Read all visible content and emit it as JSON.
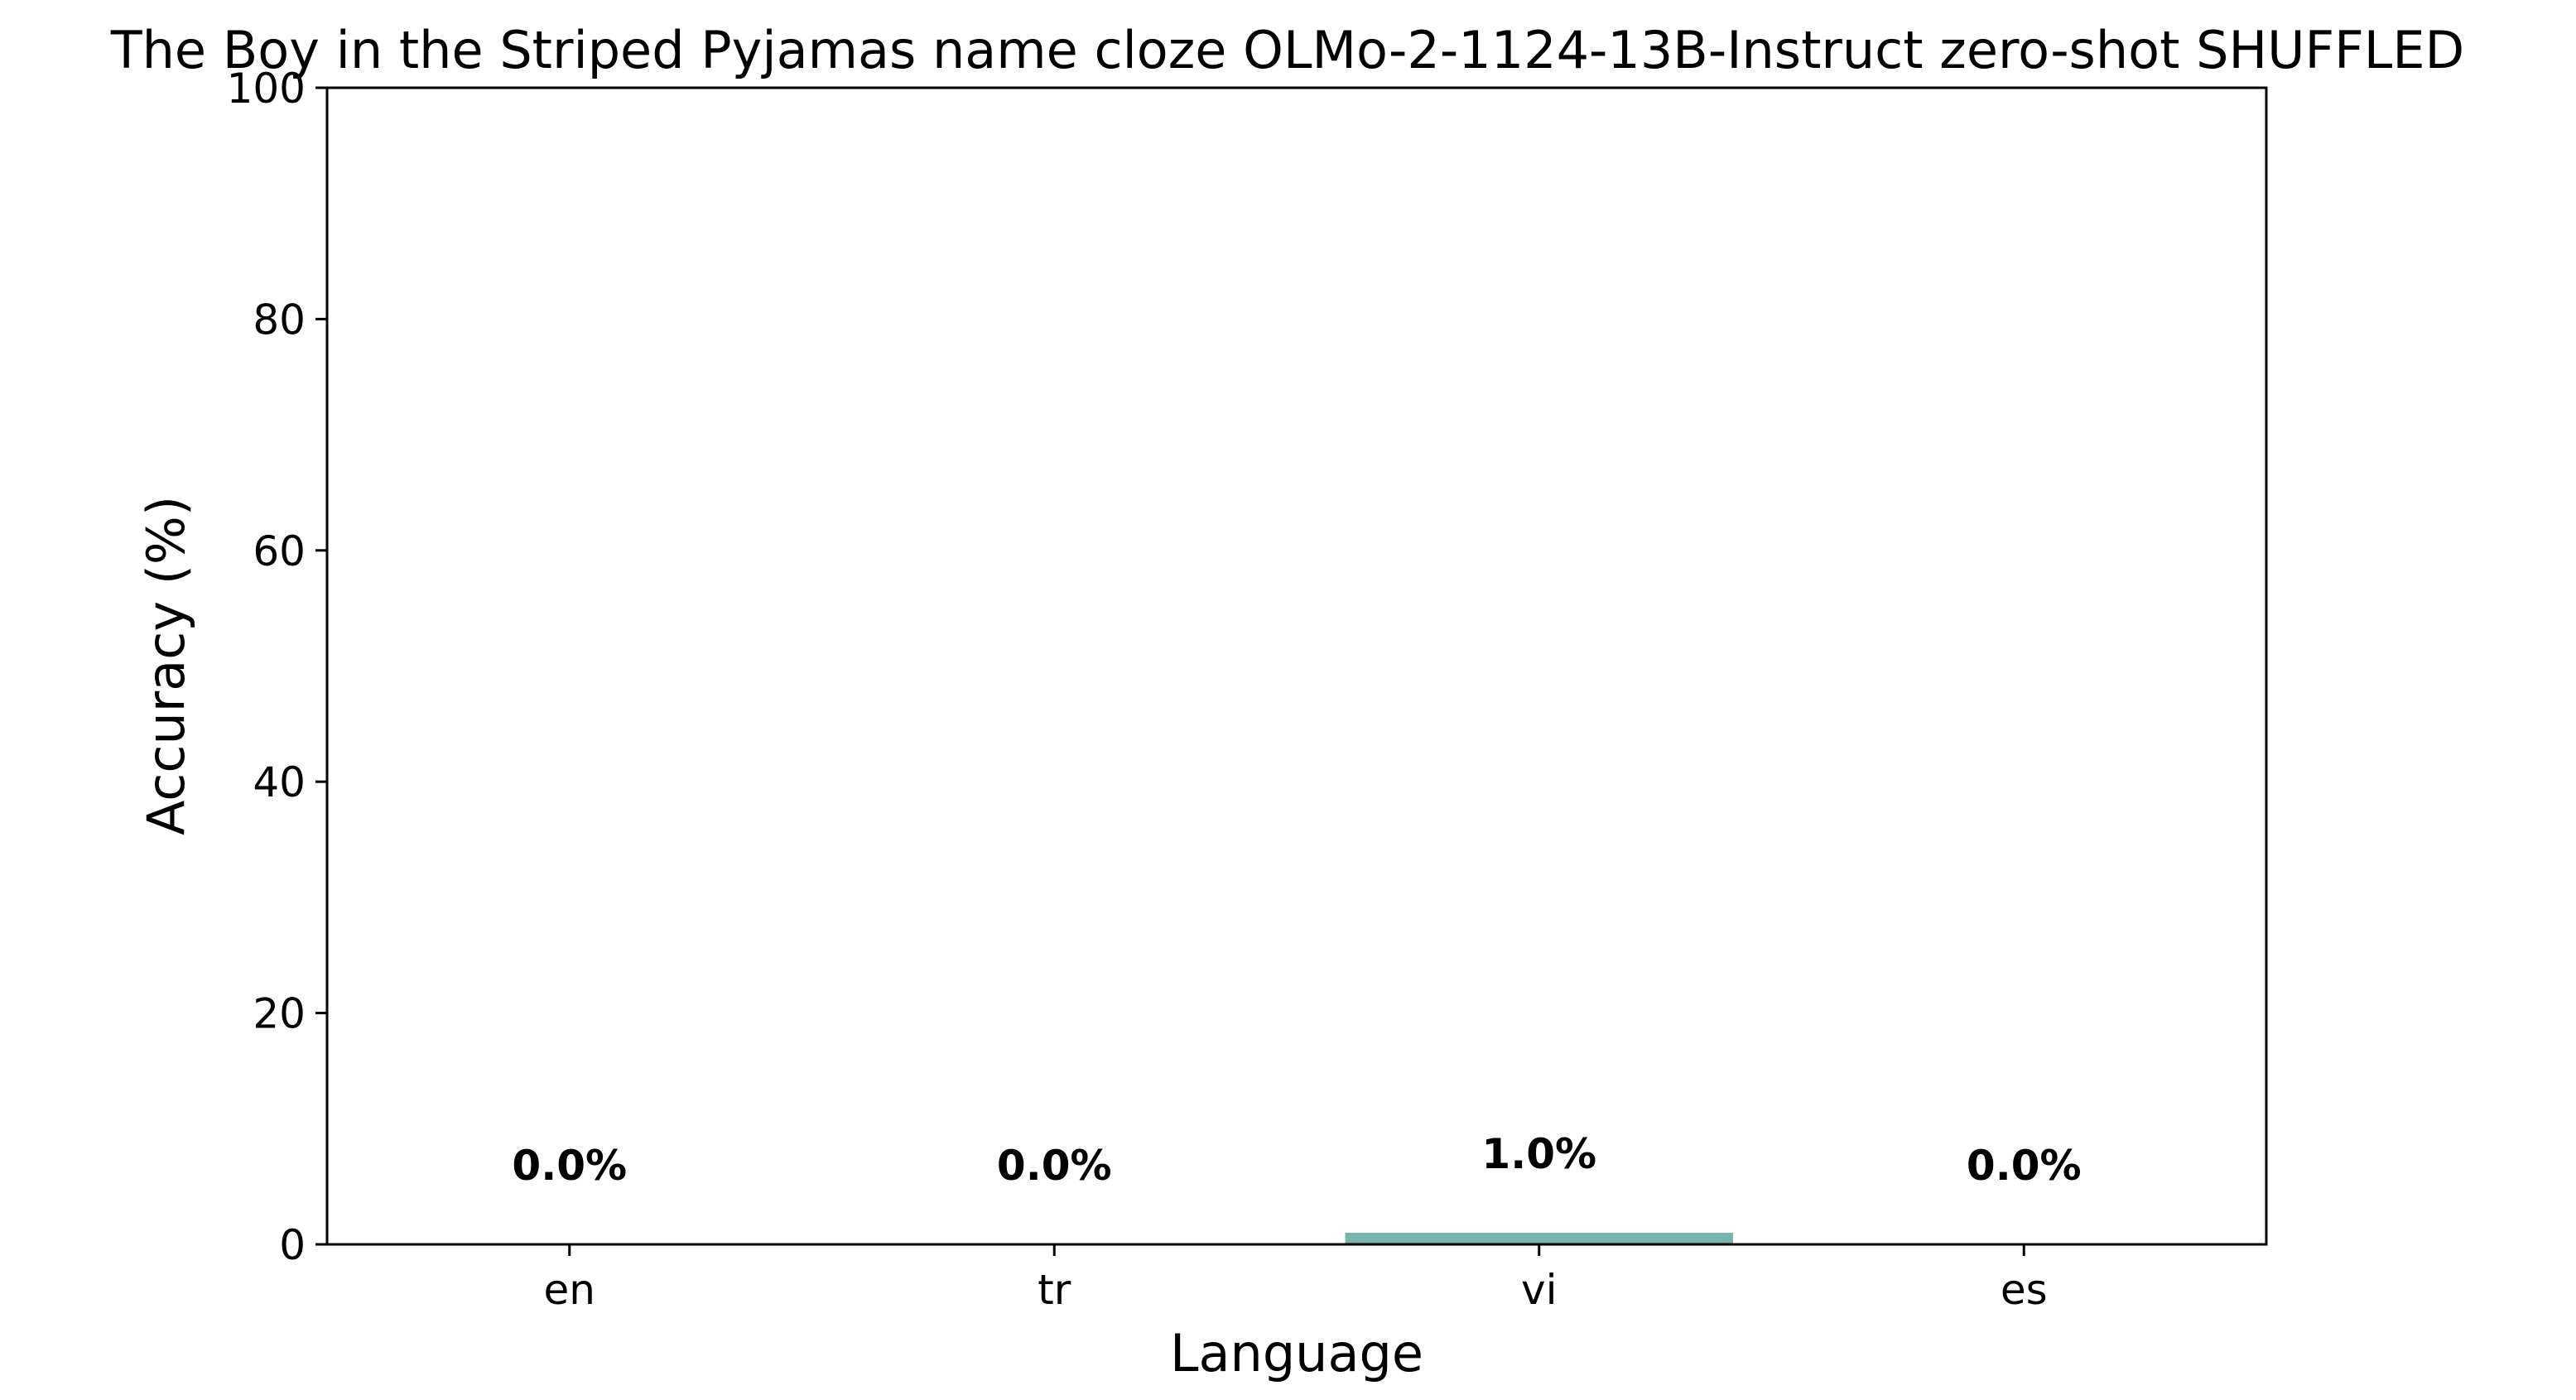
{
  "chart_data": {
    "type": "bar",
    "title": "The Boy in the Striped Pyjamas name cloze OLMo-2-1124-13B-Instruct zero-shot SHUFFLED",
    "xlabel": "Language",
    "ylabel": "Accuracy (%)",
    "categories": [
      "en",
      "tr",
      "vi",
      "es"
    ],
    "values": [
      0.0,
      0.0,
      1.0,
      0.0
    ],
    "data_labels": [
      "0.0%",
      "0.0%",
      "1.0%",
      "0.0%"
    ],
    "ylim": [
      0,
      100
    ],
    "yticks": [
      "0",
      "20",
      "40",
      "60",
      "80",
      "100"
    ],
    "grid": false,
    "bar_color": "#76b5ab"
  }
}
